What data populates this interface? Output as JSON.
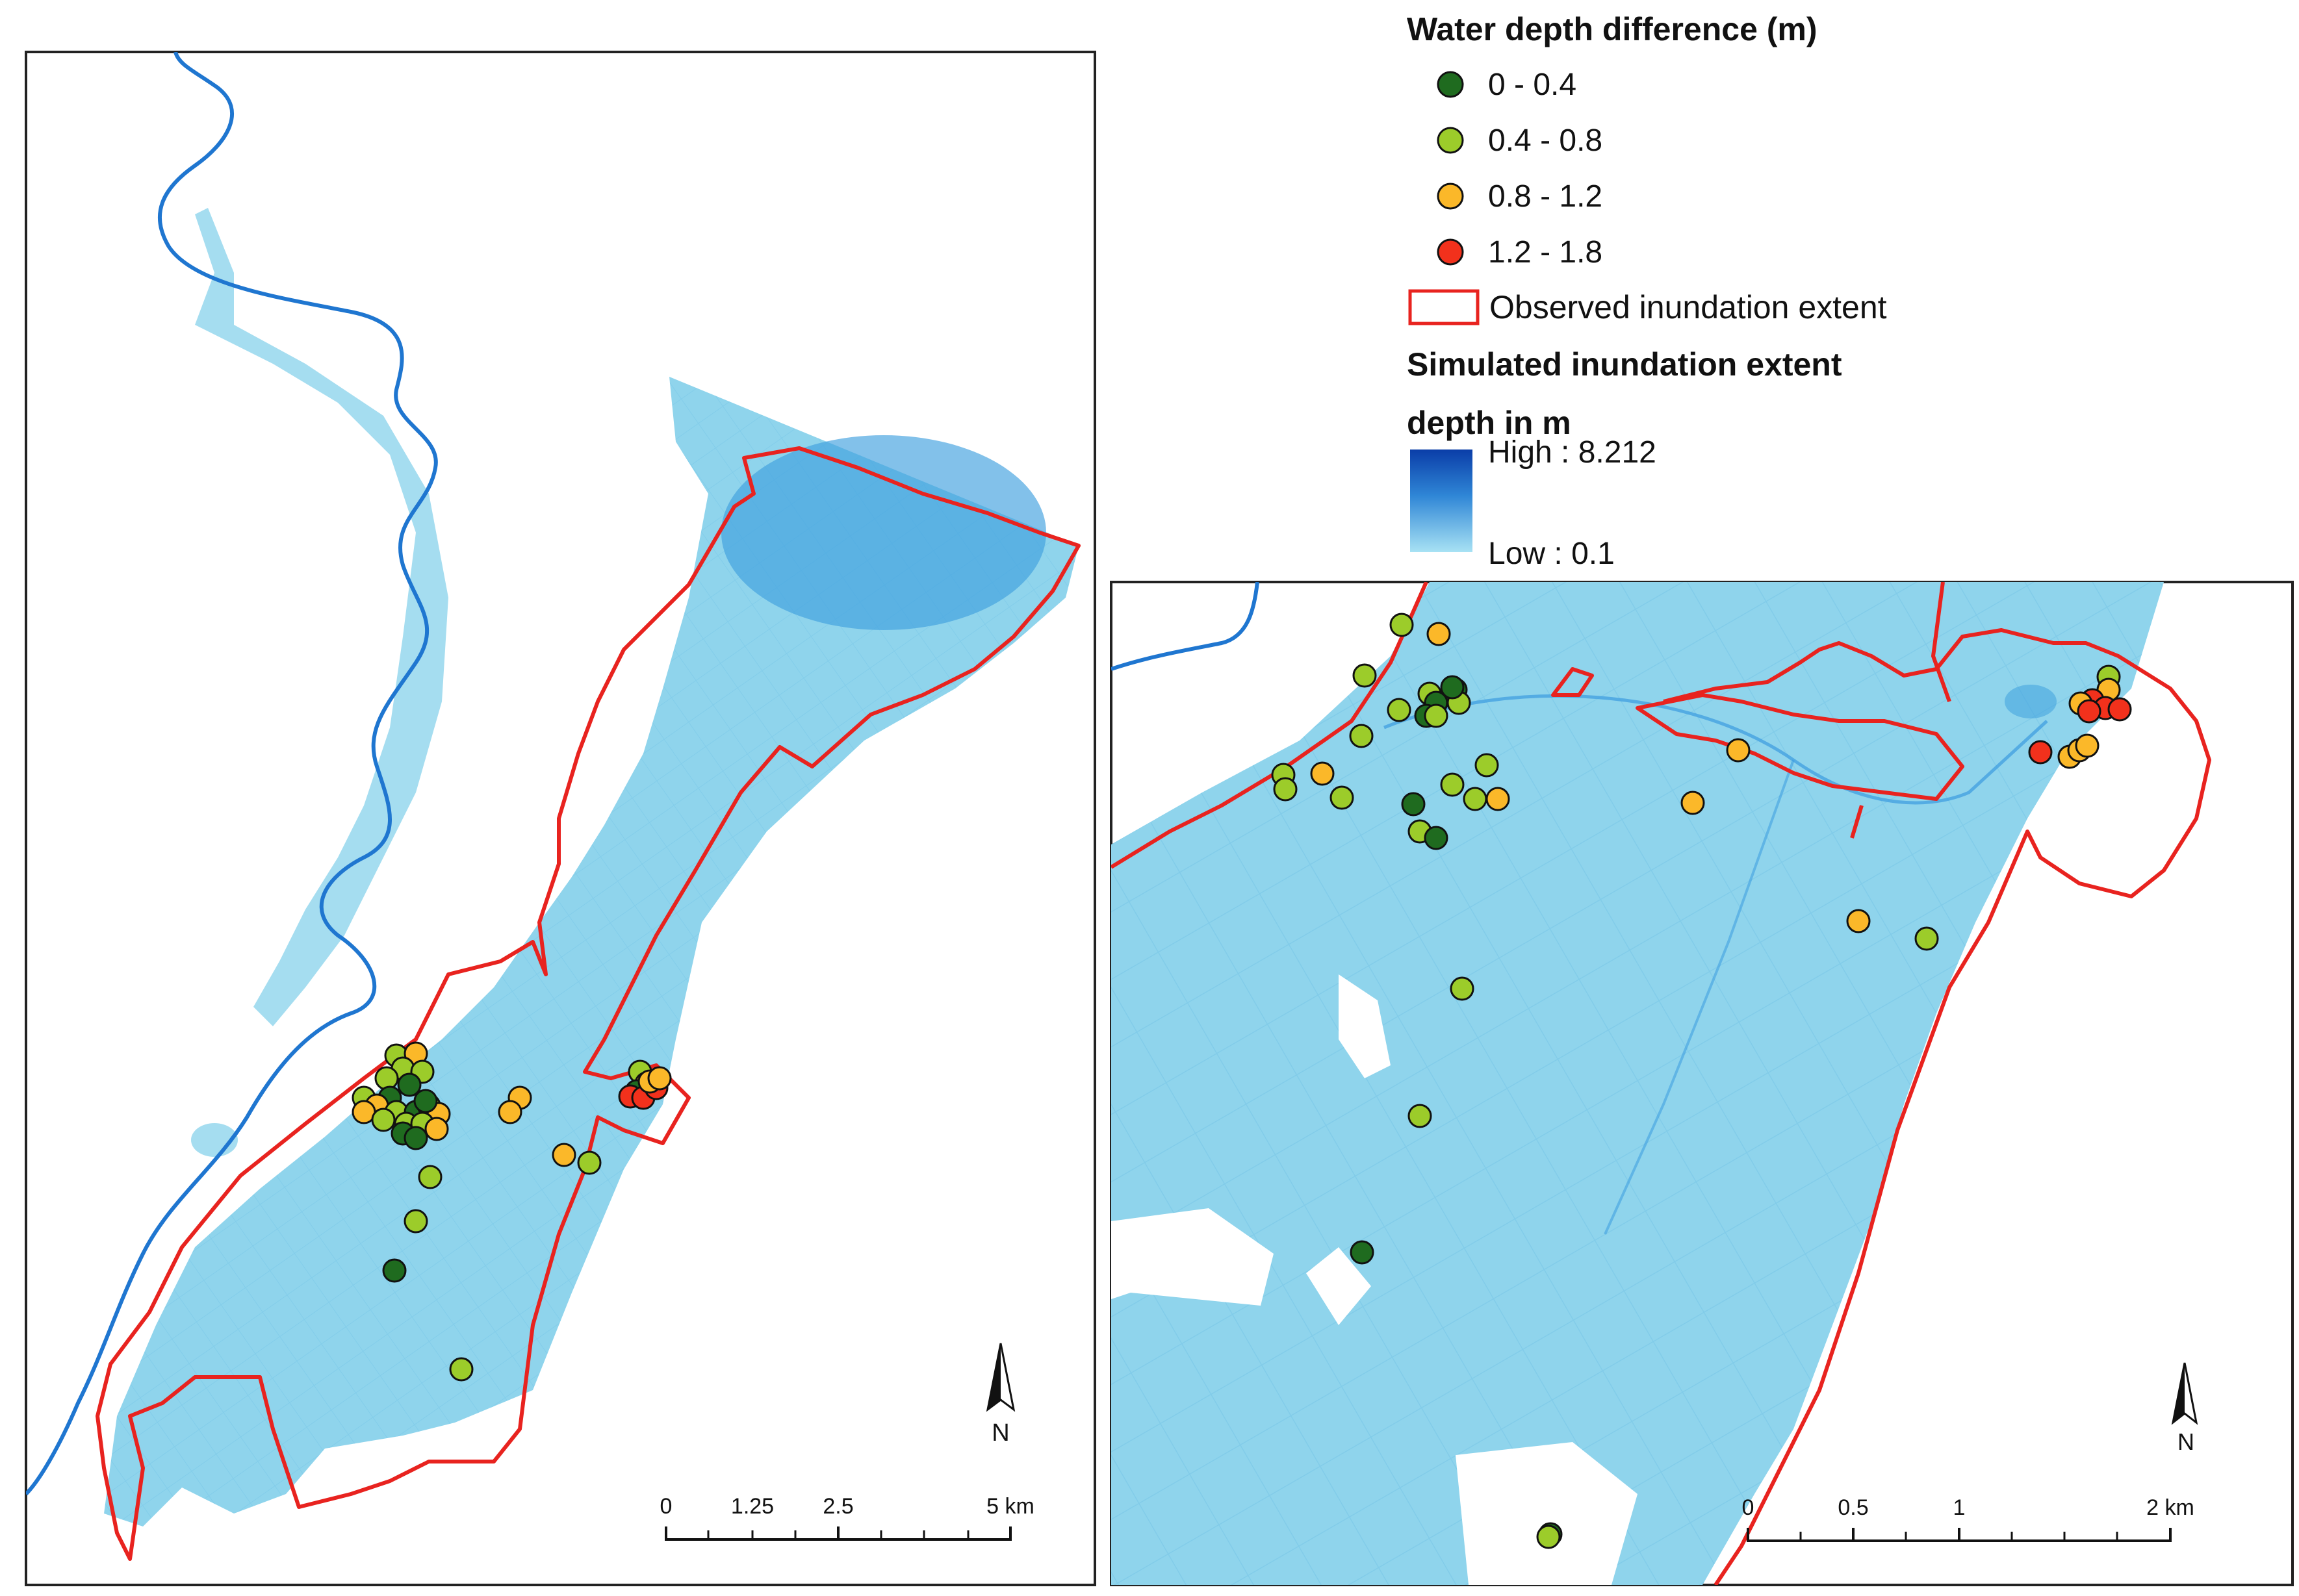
{
  "legend": {
    "points_title": "Water depth difference (m)",
    "classes": [
      {
        "label": "0 - 0.4",
        "color": "#1f6b1f"
      },
      {
        "label": "0.4 - 0.8",
        "color": "#9ccc2a"
      },
      {
        "label": "0.8 - 1.2",
        "color": "#fbb829"
      },
      {
        "label": "1.2 - 1.8",
        "color": "#f2311c"
      }
    ],
    "observed_label": "Observed inundation extent",
    "observed_color": "#e8231f",
    "simulated_title": "Simulated inundation extent",
    "depth_title": "depth in m",
    "ramp_high": "High : 8.212",
    "ramp_low": "Low : 0.1",
    "ramp_colors": [
      "#0a3da8",
      "#2f86d6",
      "#a8e2f4"
    ]
  },
  "colors": {
    "river": "#1f76d0",
    "flood": "#8fd4ec",
    "flood_deep": "#3fa0de",
    "frame": "#222222"
  },
  "overview_map": {
    "north_label": "N",
    "scale_ticks": [
      "0",
      "1.25",
      "2.5",
      "5 km"
    ]
  },
  "detail_map": {
    "north_label": "N",
    "scale_ticks": [
      "0",
      "0.5",
      "1",
      "2 km"
    ]
  }
}
